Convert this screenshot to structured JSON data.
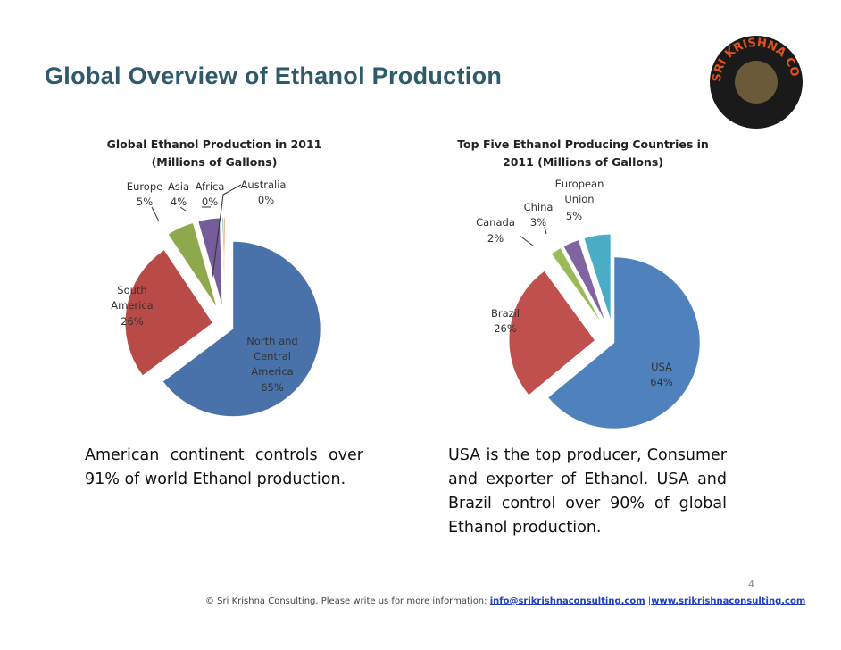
{
  "title": "Global Overview of Ethanol Production",
  "logo": {
    "text": "SRI KRISHNA CONSULTING"
  },
  "chart_data": [
    {
      "type": "pie",
      "title": "Global Ethanol Production in 2011 (Millions of Gallons)",
      "categories": [
        "North and Central America",
        "South America",
        "Europe",
        "Asia",
        "Africa",
        "Australia"
      ],
      "values": [
        65,
        26,
        5,
        4,
        0.2,
        0.2
      ],
      "value_labels": [
        "65%",
        "26%",
        "5%",
        "4%",
        "0%",
        "0%"
      ],
      "colors": [
        "#4a72aa",
        "#b84b48",
        "#8ea94c",
        "#755c9a",
        "#4aa3bf",
        "#e0893b"
      ]
    },
    {
      "type": "pie",
      "title": "Top Five Ethanol Producing Countries in 2011 (Millions of Gallons)",
      "categories": [
        "USA",
        "Brazil",
        "Canada",
        "China",
        "European Union"
      ],
      "values": [
        64,
        26,
        2,
        3,
        5
      ],
      "value_labels": [
        "64%",
        "26%",
        "2%",
        "3%",
        "5%"
      ],
      "colors": [
        "#4f81bd",
        "#c0504d",
        "#9bbb59",
        "#8064a2",
        "#4bacc6"
      ]
    }
  ],
  "notes": [
    "American continent controls over 91% of world Ethanol production.",
    "USA is the top producer, Consumer and exporter of Ethanol. USA and Brazil control over 90% of global Ethanol production."
  ],
  "page_number": "4",
  "footer": {
    "text": "© Sri Krishna Consulting. Please write us for more information:",
    "email": "info@srikrishnaconsulting.com",
    "separator": "|",
    "website": "www.srikrishnaconsulting.com"
  }
}
